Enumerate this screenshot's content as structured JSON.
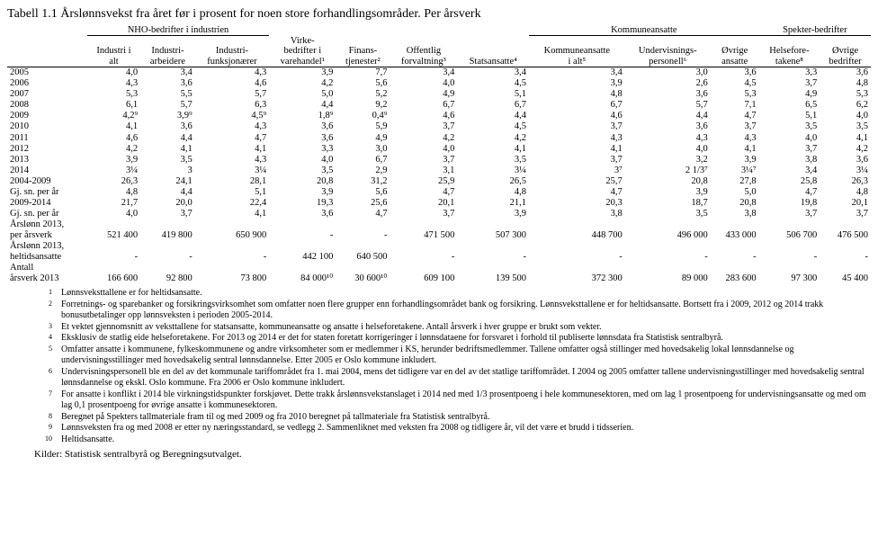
{
  "title": "Tabell 1.1 Årslønnsvekst fra året før i prosent for noen store forhandlingsområder. Per årsverk",
  "group_headers": {
    "g1": "NHO-bedrifter i industrien",
    "g2": "Kommuneansatte",
    "g3": "Spekter-bedrifter"
  },
  "col_headers": {
    "c0": "",
    "c1": "Industri i\nalt",
    "c2": "Industri-\narbeidere",
    "c3": "Industri-\nfunksjonærer",
    "c4": "Virke-\nbedrifter i\nvarehandel¹",
    "c5": "Finans-\ntjenester²",
    "c6": "Offentlig\nforvaltning³",
    "c7": "Statsansatte⁴",
    "c8": "Kommuneansatte\ni alt⁵",
    "c9": "Undervisnings-\npersonell⁶",
    "c10": "Øvrige\nansatte",
    "c11": "Helsefore-\ntakene⁸",
    "c12": "Øvrige\nbedrifter"
  },
  "rows": [
    {
      "label": "2005",
      "v": [
        "4,0",
        "3,4",
        "4,3",
        "3,9",
        "7,7",
        "3,4",
        "3,4",
        "3,4",
        "3,0",
        "3,6",
        "3,3",
        "3,6"
      ]
    },
    {
      "label": "2006",
      "v": [
        "4,3",
        "3,6",
        "4,6",
        "4,2",
        "5,6",
        "4,0",
        "4,5",
        "3,9",
        "2,6",
        "4,5",
        "3,7",
        "4,8"
      ]
    },
    {
      "label": "2007",
      "v": [
        "5,3",
        "5,5",
        "5,7",
        "5,0",
        "5,2",
        "4,9",
        "5,1",
        "4,8",
        "3,6",
        "5,3",
        "4,9",
        "5,3"
      ]
    },
    {
      "label": "2008",
      "v": [
        "6,1",
        "5,7",
        "6,3",
        "4,4",
        "9,2",
        "6,7",
        "6,7",
        "6,7",
        "5,7",
        "7,1",
        "6,5",
        "6,2"
      ]
    },
    {
      "label": "2009",
      "v": [
        "4,2⁹",
        "3,9⁹",
        "4,5⁹",
        "1,8⁹",
        "0,4⁹",
        "4,6",
        "4,4",
        "4,6",
        "4,4",
        "4,7",
        "5,1",
        "4,0"
      ]
    },
    {
      "label": "2010",
      "v": [
        "4,1",
        "3,6",
        "4,3",
        "3,6",
        "5,9",
        "3,7",
        "4,5",
        "3,7",
        "3,6",
        "3,7",
        "3,5",
        "3,5"
      ]
    },
    {
      "label": "2011",
      "v": [
        "4,6",
        "4,4",
        "4,7",
        "3,6",
        "4,9",
        "4,2",
        "4,2",
        "4,3",
        "4,3",
        "4,3",
        "4,0",
        "4,1"
      ]
    },
    {
      "label": "2012",
      "v": [
        "4,2",
        "4,1",
        "4,1",
        "3,3",
        "3,0",
        "4,0",
        "4,1",
        "4,1",
        "4,0",
        "4,1",
        "3,7",
        "4,2"
      ]
    },
    {
      "label": "2013",
      "v": [
        "3,9",
        "3,5",
        "4,3",
        "4,0",
        "6,7",
        "3,7",
        "3,5",
        "3,7",
        "3,2",
        "3,9",
        "3,8",
        "3,6"
      ]
    },
    {
      "label": "2014",
      "v": [
        "3¼",
        "3",
        "3¼",
        "3,5",
        "2,9",
        "3,1",
        "3¼",
        "3⁷",
        "2 1/3⁷",
        "3¼⁷",
        "3,4",
        "3¼"
      ]
    },
    {
      "label": "2004-2009",
      "v": [
        "26,3",
        "24,1",
        "28,1",
        "20,8",
        "31,2",
        "25,9",
        "26,5",
        "25,7",
        "20,8",
        "27,8",
        "25,8",
        "26,3"
      ]
    },
    {
      "label": "Gj. sn. per år",
      "v": [
        "4,8",
        "4,4",
        "5,1",
        "3,9",
        "5,6",
        "4,7",
        "4,8",
        "4,7",
        "3,9",
        "5,0",
        "4,7",
        "4,8"
      ]
    },
    {
      "label": "2009-2014",
      "v": [
        "21,7",
        "20,0",
        "22,4",
        "19,3",
        "25,6",
        "20,1",
        "21,1",
        "20,3",
        "18,7",
        "20,8",
        "19,8",
        "20,1"
      ]
    },
    {
      "label": "Gj. sn. per år",
      "v": [
        "4,0",
        "3,7",
        "4,1",
        "3,6",
        "4,7",
        "3,7",
        "3,9",
        "3,8",
        "3,5",
        "3,8",
        "3,7",
        "3,7"
      ]
    },
    {
      "label": "Årslønn 2013,\nper årsverk",
      "v": [
        "521 400",
        "419 800",
        "650 900",
        "-",
        "-",
        "471 500",
        "507 300",
        "448 700",
        "496 000",
        "433 000",
        "506 700",
        "476 500"
      ]
    },
    {
      "label": "Årslønn 2013,\nheltidsansatte",
      "v": [
        "-",
        "-",
        "-",
        "442 100",
        "640 500",
        "-",
        "-",
        "-",
        "-",
        "-",
        "-",
        "-"
      ]
    },
    {
      "label": "Antall\nårsverk 2013",
      "v": [
        "166 600",
        "92 800",
        "73 800",
        "84 000¹⁰",
        "30 600¹⁰",
        "609 100",
        "139 500",
        "372 300",
        "89 000",
        "283 600",
        "97 300",
        "45 400"
      ]
    }
  ],
  "footnotes": [
    {
      "n": "1",
      "t": "Lønnsveksttallene er for heltidsansatte."
    },
    {
      "n": "2",
      "t": "Forretnings- og sparebanker og forsikringsvirksomhet som omfatter noen flere grupper enn forhandlingsområdet bank og forsikring. Lønnsveksttallene er for heltidsansatte. Bortsett fra i 2009, 2012 og 2014 trakk bonusutbetalinger opp lønnsveksten i perioden 2005-2014."
    },
    {
      "n": "3",
      "t": "Et vektet gjennomsnitt av veksttallene for statsansatte, kommuneansatte og ansatte i helseforetakene. Antall årsverk i hver gruppe er brukt som vekter."
    },
    {
      "n": "4",
      "t": "Eksklusiv de statlig eide helseforetakene. For 2013 og 2014 er det for staten foretatt korrigeringer i lønnsdataene for forsvaret i forhold til publiserte lønnsdata fra Statistisk sentralbyrå."
    },
    {
      "n": "5",
      "t": "Omfatter ansatte i kommunene, fylkeskommunene og andre virksomheter som er medlemmer i KS, herunder bedriftsmedlemmer. Tallene omfatter også stillinger med hovedsakelig lokal lønnsdannelse og undervisningsstillinger med hovedsakelig sentral lønnsdannelse. Etter 2005 er Oslo kommune inkludert."
    },
    {
      "n": "6",
      "t": "Undervisningspersonell ble en del av det kommunale tariffområdet fra 1. mai 2004, mens det tidligere var en del av det statlige tariffområdet. I 2004 og 2005 omfatter tallene undervisningsstillinger med hovedsakelig sentral lønnsdannelse og ekskl. Oslo kommune. Fra 2006 er Oslo kommune inkludert."
    },
    {
      "n": "7",
      "t": "For ansatte i konflikt i 2014 ble virkningstidspunkter forskjøvet. Dette trakk årslønnsvekstanslaget i 2014 ned med 1/3 prosentpoeng i hele kommunesektoren, med om lag 1 prosentpoeng for undervisningsansatte og med om lag 0,1 prosentpoeng for øvrige ansatte i kommunesektoren."
    },
    {
      "n": "8",
      "t": "Beregnet på Spekters tallmateriale fram til og med 2009 og fra 2010 beregnet på tallmateriale fra Statistisk sentralbyrå."
    },
    {
      "n": "9",
      "t": "Lønnsveksten fra og med 2008 er etter ny næringsstandard, se vedlegg 2. Sammenliknet med veksten fra 2008 og tidligere år, vil det være et brudd i tidsserien."
    },
    {
      "n": "10",
      "t": "Heltidsansatte."
    }
  ],
  "source": "Kilder: Statistisk sentralbyrå og Beregningsutvalget."
}
